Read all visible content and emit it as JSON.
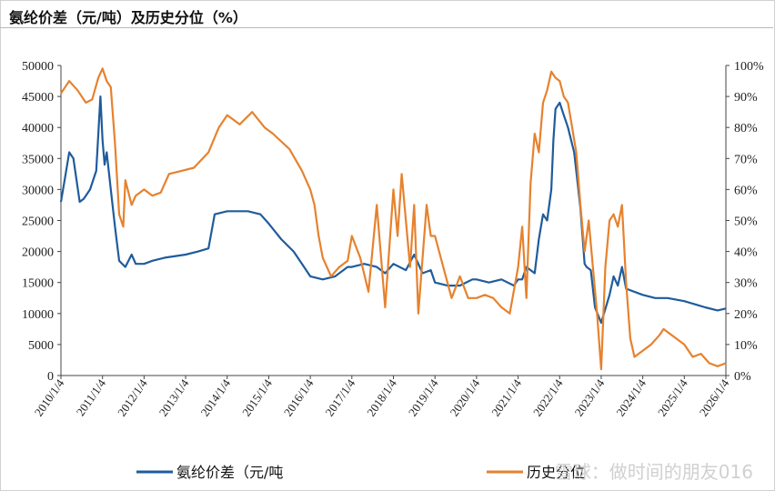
{
  "header": {
    "title": "氨纶价差（元/吨）及历史分位（%）"
  },
  "watermark": "雪球：做时间的朋友016",
  "colors": {
    "spread": "#1f5c9c",
    "percentile": "#e6822e",
    "axis": "#444444"
  },
  "chart_data": {
    "type": "line",
    "title": "氨纶价差（元/吨）及历史分位（%）",
    "xlabel": "",
    "ylabel": "",
    "x_ticks": [
      "2010/1/4",
      "2011/1/4",
      "2012/1/4",
      "2013/1/4",
      "2014/1/4",
      "2015/1/4",
      "2016/1/4",
      "2017/1/4",
      "2018/1/4",
      "2019/1/4",
      "2020/1/4",
      "2021/1/4",
      "2022/1/4",
      "2023/1/4",
      "2024/1/4",
      "2025/1/4",
      "2026/1/4"
    ],
    "xlim": [
      2010.0,
      2026.0
    ],
    "y_left": {
      "ylim": [
        0,
        50000
      ],
      "ticks": [
        "0",
        "5000",
        "10000",
        "15000",
        "20000",
        "25000",
        "30000",
        "35000",
        "40000",
        "45000",
        "50000"
      ]
    },
    "y_right": {
      "ylim": [
        0,
        100
      ],
      "ticks": [
        "0%",
        "10%",
        "20%",
        "30%",
        "40%",
        "50%",
        "60%",
        "70%",
        "80%",
        "90%",
        "100%"
      ]
    },
    "legend_position": "bottom",
    "series": [
      {
        "name": "氨纶价差（元/吨",
        "axis": "left",
        "color": "#1f5c9c",
        "x": [
          2010.0,
          2010.1,
          2010.2,
          2010.3,
          2010.45,
          2010.55,
          2010.7,
          2010.85,
          2010.95,
          2011.0,
          2011.05,
          2011.1,
          2011.2,
          2011.3,
          2011.4,
          2011.55,
          2011.7,
          2011.8,
          2012.0,
          2012.2,
          2012.5,
          2013.0,
          2013.3,
          2013.55,
          2013.7,
          2014.0,
          2014.5,
          2014.8,
          2015.0,
          2015.3,
          2015.6,
          2015.8,
          2016.0,
          2016.3,
          2016.6,
          2016.9,
          2017.0,
          2017.3,
          2017.6,
          2017.8,
          2018.0,
          2018.3,
          2018.5,
          2018.7,
          2018.9,
          2019.0,
          2019.3,
          2019.6,
          2019.9,
          2020.0,
          2020.3,
          2020.6,
          2020.9,
          2021.0,
          2021.1,
          2021.2,
          2021.3,
          2021.4,
          2021.5,
          2021.6,
          2021.7,
          2021.8,
          2021.85,
          2021.9,
          2022.0,
          2022.1,
          2022.2,
          2022.35,
          2022.4,
          2022.5,
          2022.6,
          2022.65,
          2022.75,
          2022.85,
          2023.0,
          2023.2,
          2023.3,
          2023.4,
          2023.5,
          2023.6,
          2024.0,
          2024.3,
          2024.6,
          2025.0,
          2025.5,
          2025.8,
          2026.0
        ],
        "y": [
          28000,
          32000,
          36000,
          35000,
          28000,
          28500,
          30000,
          33000,
          45000,
          38000,
          34000,
          36000,
          30000,
          24000,
          18500,
          17500,
          19500,
          18000,
          18000,
          18500,
          19000,
          19500,
          20000,
          20500,
          26000,
          26500,
          26500,
          26000,
          24500,
          22000,
          20000,
          18000,
          16000,
          15500,
          16000,
          17500,
          17500,
          18000,
          17500,
          16500,
          18000,
          17000,
          19500,
          16500,
          17000,
          15000,
          14500,
          14500,
          15500,
          15500,
          15000,
          15500,
          14500,
          15500,
          15500,
          17500,
          17000,
          16500,
          22000,
          26000,
          25000,
          30000,
          38000,
          43000,
          44000,
          42000,
          40000,
          36000,
          33000,
          27000,
          18000,
          17500,
          17000,
          11000,
          8500,
          13000,
          16000,
          14500,
          17500,
          14000,
          13000,
          12500,
          12500,
          12000,
          11000,
          10500,
          10800
        ]
      },
      {
        "name": "历史分位",
        "axis": "right",
        "color": "#e6822e",
        "x": [
          2010.0,
          2010.2,
          2010.4,
          2010.6,
          2010.75,
          2010.9,
          2011.0,
          2011.1,
          2011.2,
          2011.3,
          2011.4,
          2011.5,
          2011.55,
          2011.7,
          2011.8,
          2012.0,
          2012.2,
          2012.4,
          2012.6,
          2012.9,
          2013.2,
          2013.55,
          2013.8,
          2014.0,
          2014.3,
          2014.6,
          2014.9,
          2015.1,
          2015.5,
          2015.8,
          2016.0,
          2016.1,
          2016.2,
          2016.3,
          2016.5,
          2016.7,
          2016.9,
          2017.0,
          2017.2,
          2017.4,
          2017.6,
          2017.8,
          2018.0,
          2018.1,
          2018.2,
          2018.4,
          2018.5,
          2018.6,
          2018.8,
          2018.9,
          2019.0,
          2019.2,
          2019.4,
          2019.6,
          2019.8,
          2020.0,
          2020.2,
          2020.4,
          2020.6,
          2020.8,
          2021.0,
          2021.1,
          2021.2,
          2021.3,
          2021.4,
          2021.5,
          2021.6,
          2021.7,
          2021.8,
          2021.9,
          2022.0,
          2022.1,
          2022.2,
          2022.3,
          2022.4,
          2022.5,
          2022.6,
          2022.7,
          2022.8,
          2022.9,
          2023.0,
          2023.1,
          2023.2,
          2023.3,
          2023.4,
          2023.5,
          2023.6,
          2023.7,
          2023.8,
          2024.0,
          2024.2,
          2024.4,
          2024.5,
          2024.6,
          2024.8,
          2025.0,
          2025.2,
          2025.4,
          2025.6,
          2025.8,
          2026.0
        ],
        "y": [
          91,
          95,
          92,
          88,
          89,
          96,
          99,
          95,
          93,
          75,
          52,
          48,
          63,
          55,
          58,
          60,
          58,
          59,
          65,
          66,
          67,
          72,
          80,
          84,
          81,
          85,
          80,
          78,
          73,
          66,
          60,
          55,
          45,
          38,
          32,
          35,
          37,
          45,
          38,
          27,
          55,
          22,
          60,
          45,
          65,
          35,
          55,
          20,
          55,
          45,
          45,
          35,
          25,
          32,
          25,
          25,
          26,
          25,
          22,
          20,
          35,
          48,
          25,
          62,
          78,
          72,
          88,
          92,
          98,
          96,
          95,
          90,
          88,
          80,
          72,
          55,
          40,
          50,
          35,
          20,
          2,
          35,
          50,
          52,
          48,
          55,
          30,
          12,
          6,
          8,
          10,
          13,
          15,
          14,
          12,
          10,
          6,
          7,
          4,
          3,
          4
        ]
      }
    ]
  }
}
